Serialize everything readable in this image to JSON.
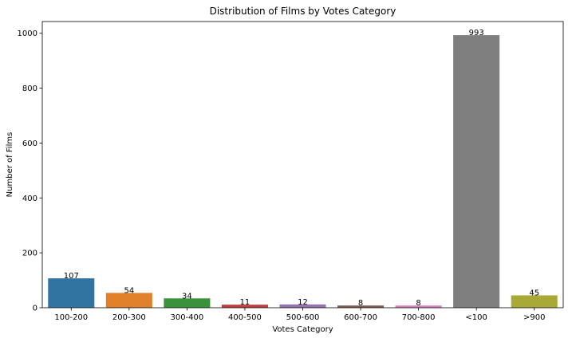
{
  "chart_data": {
    "type": "bar",
    "title": "Distribution of Films by Votes Category",
    "xlabel": "Votes Category",
    "ylabel": "Number of Films",
    "categories": [
      "100-200",
      "200-300",
      "300-400",
      "400-500",
      "500-600",
      "600-700",
      "700-800",
      "<100",
      ">900"
    ],
    "values": [
      107,
      54,
      34,
      11,
      12,
      8,
      8,
      993,
      45
    ],
    "colors": [
      "#3274a1",
      "#e1812c",
      "#3a923a",
      "#c03d3e",
      "#9372b2",
      "#845b53",
      "#d684bd",
      "#7f7f7f",
      "#a9aa35"
    ],
    "ylim": [
      0,
      1042.65
    ],
    "yticks": [
      0,
      200,
      400,
      600,
      800,
      1000
    ],
    "grid": false,
    "legend": "none",
    "data_labels": true
  }
}
